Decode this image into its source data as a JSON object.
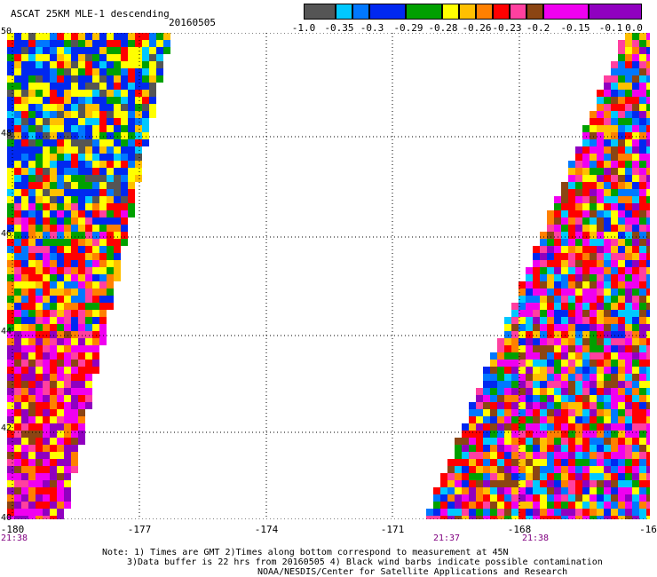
{
  "title": "ASCAT 25KM MLE-1 descending",
  "date": "20160505",
  "colorbar": {
    "colors": [
      "#555555",
      "#00c8ff",
      "#0078ff",
      "#0028f0",
      "#00a000",
      "#ffff00",
      "#ffc000",
      "#ff8000",
      "#ff0000",
      "#ff40a0",
      "#8b4513",
      "#f000f0",
      "#9000c0"
    ],
    "labels": [
      "-1.0",
      "-0.35",
      "-0.3",
      "-0.29",
      "-0.28",
      "-0.26",
      "-0.23",
      "-0.2",
      "-0.15",
      "-0.1",
      "0.0"
    ]
  },
  "map": {
    "lon_ticks": [
      "-180",
      "-177",
      "-174",
      "-171",
      "-168",
      "-16"
    ],
    "lat_ticks": [
      "50",
      "48",
      "46",
      "44",
      "42",
      "40"
    ],
    "time_labels": [
      "21:38",
      "21:37",
      "21:38"
    ]
  },
  "notes": {
    "line1": "Note: 1) Times are GMT 2)Times along bottom correspond to measurement at 45N",
    "line2": "3)Data buffer is 22 hrs from 20160505 4) Black wind barbs indicate possible contamination",
    "line3": "NOAA/NESDIS/Center for Satellite Applications and Research"
  }
}
